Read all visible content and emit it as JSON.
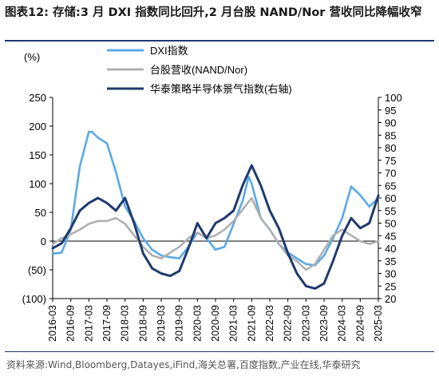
{
  "figure": {
    "title_label": "图表12:",
    "title_text": "存储:3 月 DXI 指数同比回升,2 月台股 NAND/Nor 营收同比降幅收窄",
    "source": "资料来源:Wind,Bloomberg,Datayes,iFind,海关总署,百度指数,产业在线,华泰研究"
  },
  "chart_data": {
    "type": "line",
    "y_unit_label": "(%)",
    "y_left": {
      "ticks": [
        "250",
        "200",
        "150",
        "100",
        "50",
        "0",
        "(50)",
        "(100)"
      ],
      "values": [
        250,
        200,
        150,
        100,
        50,
        0,
        -50,
        -100
      ],
      "lim": [
        -100,
        250
      ]
    },
    "y_right": {
      "ticks": [
        "100",
        "95",
        "90",
        "85",
        "80",
        "75",
        "70",
        "65",
        "60",
        "55",
        "50",
        "45",
        "40",
        "35",
        "30",
        "25",
        "20"
      ],
      "lim": [
        20,
        100
      ]
    },
    "x_ticks": [
      "2016-03",
      "2016-09",
      "2017-03",
      "2017-09",
      "2018-03",
      "2018-09",
      "2019-03",
      "2019-09",
      "2020-03",
      "2020-09",
      "2021-03",
      "2021-09",
      "2022-03",
      "2022-09",
      "2023-03",
      "2023-09",
      "2024-03",
      "2024-09",
      "2025-03"
    ],
    "x_range": [
      "2016-03",
      "2025-03"
    ],
    "legend_position": "top",
    "series": [
      {
        "name": "DXI指数",
        "axis": "left",
        "color": "#5aa9e6",
        "points": [
          [
            "2016-03",
            -22
          ],
          [
            "2016-06",
            -20
          ],
          [
            "2016-09",
            20
          ],
          [
            "2016-12",
            130
          ],
          [
            "2017-03",
            190
          ],
          [
            "2017-04",
            190
          ],
          [
            "2017-06",
            180
          ],
          [
            "2017-09",
            170
          ],
          [
            "2017-12",
            120
          ],
          [
            "2018-03",
            60
          ],
          [
            "2018-06",
            35
          ],
          [
            "2018-09",
            5
          ],
          [
            "2018-12",
            -15
          ],
          [
            "2019-03",
            -25
          ],
          [
            "2019-06",
            -28
          ],
          [
            "2019-09",
            -30
          ],
          [
            "2019-12",
            -10
          ],
          [
            "2020-03",
            15
          ],
          [
            "2020-06",
            5
          ],
          [
            "2020-09",
            -15
          ],
          [
            "2020-12",
            -10
          ],
          [
            "2021-03",
            30
          ],
          [
            "2021-06",
            70
          ],
          [
            "2021-08",
            112
          ],
          [
            "2021-09",
            100
          ],
          [
            "2021-12",
            40
          ],
          [
            "2022-03",
            20
          ],
          [
            "2022-06",
            -5
          ],
          [
            "2022-09",
            -20
          ],
          [
            "2022-12",
            -30
          ],
          [
            "2023-03",
            -40
          ],
          [
            "2023-06",
            -42
          ],
          [
            "2023-09",
            -25
          ],
          [
            "2023-12",
            5
          ],
          [
            "2024-03",
            40
          ],
          [
            "2024-06",
            95
          ],
          [
            "2024-09",
            80
          ],
          [
            "2024-12",
            60
          ],
          [
            "2025-03",
            75
          ]
        ]
      },
      {
        "name": "台股营收(NAND/Nor)",
        "axis": "left",
        "color": "#b0b0b0",
        "points": [
          [
            "2016-03",
            -5
          ],
          [
            "2016-06",
            5
          ],
          [
            "2016-09",
            12
          ],
          [
            "2016-12",
            20
          ],
          [
            "2017-03",
            30
          ],
          [
            "2017-06",
            35
          ],
          [
            "2017-09",
            35
          ],
          [
            "2017-12",
            40
          ],
          [
            "2018-03",
            30
          ],
          [
            "2018-06",
            10
          ],
          [
            "2018-09",
            -10
          ],
          [
            "2018-12",
            -25
          ],
          [
            "2019-03",
            -30
          ],
          [
            "2019-06",
            -20
          ],
          [
            "2019-09",
            -10
          ],
          [
            "2019-12",
            5
          ],
          [
            "2020-03",
            15
          ],
          [
            "2020-06",
            5
          ],
          [
            "2020-09",
            10
          ],
          [
            "2020-12",
            20
          ],
          [
            "2021-03",
            35
          ],
          [
            "2021-06",
            55
          ],
          [
            "2021-09",
            75
          ],
          [
            "2021-12",
            40
          ],
          [
            "2022-03",
            20
          ],
          [
            "2022-06",
            -5
          ],
          [
            "2022-09",
            -25
          ],
          [
            "2022-12",
            -35
          ],
          [
            "2023-03",
            -50
          ],
          [
            "2023-06",
            -40
          ],
          [
            "2023-09",
            -15
          ],
          [
            "2023-12",
            10
          ],
          [
            "2024-03",
            20
          ],
          [
            "2024-06",
            10
          ],
          [
            "2024-09",
            0
          ],
          [
            "2024-12",
            -5
          ],
          [
            "2025-03",
            0
          ]
        ]
      },
      {
        "name": "华泰策略半导体景气指数(右轴)",
        "axis": "right",
        "color": "#1f3a6e",
        "points": [
          [
            "2016-03",
            40
          ],
          [
            "2016-06",
            42
          ],
          [
            "2016-09",
            48
          ],
          [
            "2016-12",
            55
          ],
          [
            "2017-03",
            58
          ],
          [
            "2017-06",
            60
          ],
          [
            "2017-09",
            58
          ],
          [
            "2017-12",
            55
          ],
          [
            "2018-03",
            60
          ],
          [
            "2018-06",
            50
          ],
          [
            "2018-09",
            38
          ],
          [
            "2018-12",
            32
          ],
          [
            "2019-03",
            30
          ],
          [
            "2019-06",
            29
          ],
          [
            "2019-09",
            31
          ],
          [
            "2019-12",
            40
          ],
          [
            "2020-03",
            50
          ],
          [
            "2020-06",
            44
          ],
          [
            "2020-09",
            50
          ],
          [
            "2020-12",
            52
          ],
          [
            "2021-03",
            55
          ],
          [
            "2021-06",
            65
          ],
          [
            "2021-09",
            73
          ],
          [
            "2021-12",
            65
          ],
          [
            "2022-03",
            55
          ],
          [
            "2022-06",
            48
          ],
          [
            "2022-09",
            38
          ],
          [
            "2022-12",
            30
          ],
          [
            "2023-03",
            25
          ],
          [
            "2023-06",
            24
          ],
          [
            "2023-09",
            26
          ],
          [
            "2023-12",
            35
          ],
          [
            "2024-03",
            45
          ],
          [
            "2024-06",
            52
          ],
          [
            "2024-09",
            48
          ],
          [
            "2024-12",
            50
          ],
          [
            "2025-03",
            61
          ]
        ]
      }
    ]
  }
}
